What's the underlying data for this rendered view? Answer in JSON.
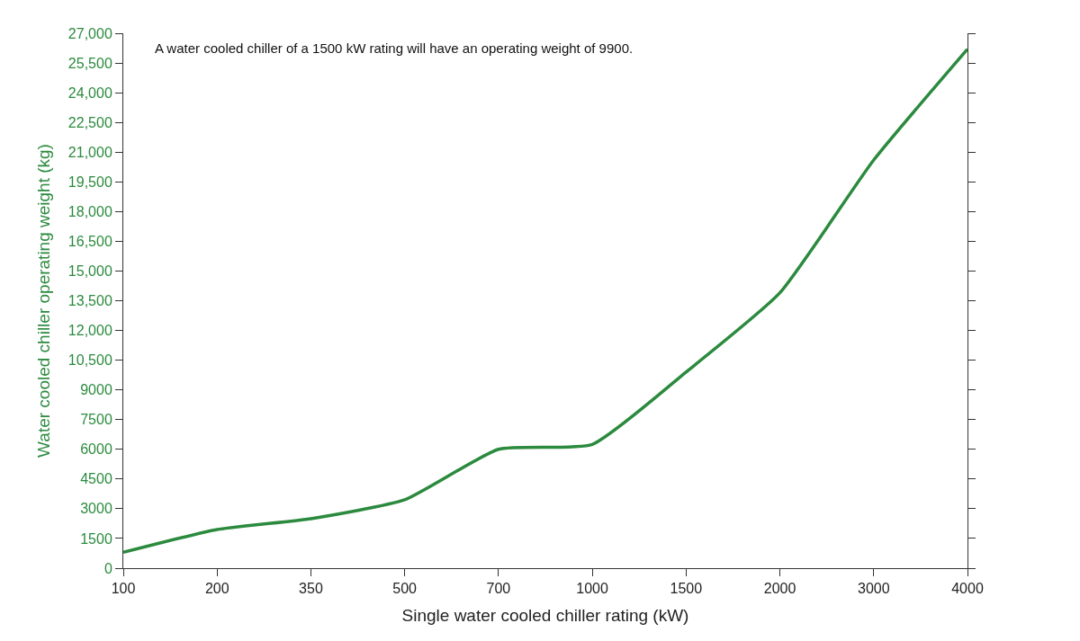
{
  "chart_data": {
    "type": "line",
    "xlabel": "Single water cooled chiller rating (kW)",
    "ylabel": "Water cooled chiller operating weight (kg)",
    "categories": [
      "100",
      "200",
      "350",
      "500",
      "700",
      "1000",
      "1500",
      "2000",
      "3000",
      "4000"
    ],
    "series": [
      {
        "color": "#2b8a3e",
        "values": [
          800,
          1950,
          2500,
          3450,
          6000,
          6250,
          9900,
          13900,
          20600,
          26200
        ]
      }
    ],
    "ylim": [
      0,
      27000
    ],
    "yticks": [
      0,
      1500,
      3000,
      4500,
      6000,
      7500,
      9000,
      {
        "value": 10500,
        "label": "10,500"
      },
      {
        "value": 12000,
        "label": "12,000"
      },
      {
        "value": 13500,
        "label": "13,500"
      },
      {
        "value": 15000,
        "label": "15,000"
      },
      {
        "value": 16500,
        "label": "16,500"
      },
      {
        "value": 18000,
        "label": "18,000"
      },
      {
        "value": 19500,
        "label": "19,500"
      },
      {
        "value": 21000,
        "label": "21,000"
      },
      {
        "value": 22500,
        "label": "22,500"
      },
      {
        "value": 24000,
        "label": "24,000"
      },
      {
        "value": 25500,
        "label": "25,500"
      },
      {
        "value": 27000,
        "label": "27,000"
      }
    ],
    "annotations": [
      "A water cooled chiller of a 1500 kW rating will have an operating weight of 9900."
    ],
    "marker": "none",
    "line_style": "solid"
  }
}
